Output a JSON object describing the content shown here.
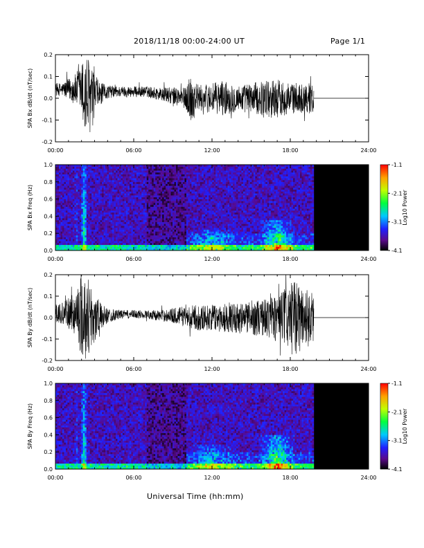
{
  "header": {
    "title": "2018/11/18  00:00-24:00 UT",
    "page": "Page 1/1"
  },
  "xaxis_label": "Universal Time (hh:mm)",
  "chart_data": [
    {
      "type": "line",
      "id": "bx-dbdt",
      "ylabel": "SPA Bx dB/dt (nT/sec)",
      "xlim": [
        0,
        24
      ],
      "ylim": [
        -0.2,
        0.2
      ],
      "x_ticks": [
        "00:00",
        "06:00",
        "12:00",
        "18:00",
        "24:00"
      ],
      "y_ticks": [
        "-0.2",
        "-0.1",
        "0.0",
        "0.1",
        "0.2"
      ],
      "grid": false,
      "data_end_hour": 19.8,
      "series": [
        {
          "x": [
            0,
            0.5,
            1,
            1.5,
            2,
            2.2,
            2.5,
            3,
            3.5,
            4,
            5,
            6,
            7,
            8,
            9,
            10,
            10.3,
            11,
            12,
            13,
            14,
            15,
            16,
            16.5,
            17,
            17.5,
            18,
            19,
            19.8,
            24
          ],
          "amplitude": [
            0.03,
            0.03,
            0.05,
            0.07,
            0.12,
            0.2,
            0.2,
            0.09,
            0.05,
            0.03,
            0.025,
            0.025,
            0.025,
            0.03,
            0.04,
            0.05,
            0.12,
            0.06,
            0.07,
            0.08,
            0.06,
            0.07,
            0.08,
            0.09,
            0.09,
            0.08,
            0.07,
            0.07,
            0.07,
            0
          ],
          "offset": [
            0.04,
            0.04,
            0.04,
            0.04,
            0.04,
            0.0,
            0.0,
            0.01,
            0.02,
            0.03,
            0.03,
            0.03,
            0.03,
            0.02,
            0.01,
            0.0,
            0.0,
            0.0,
            0.0,
            0.0,
            0.0,
            0.0,
            0.0,
            0.0,
            0.0,
            0.0,
            0.0,
            0.0,
            0.0,
            0.0
          ]
        }
      ]
    },
    {
      "type": "heatmap",
      "id": "bx-spectrogram",
      "ylabel": "SPA Bx Freq (Hz)",
      "xlim": [
        0,
        24
      ],
      "ylim": [
        0,
        1.0
      ],
      "x_ticks": [
        "00:00",
        "06:00",
        "12:00",
        "18:00",
        "24:00"
      ],
      "y_ticks": [
        "0.0",
        "0.2",
        "0.4",
        "0.6",
        "0.8",
        "1.0"
      ],
      "data_end_hour": 19.8,
      "colorbar": {
        "label": "Log10 Power",
        "range": [
          -4.1,
          -1.1
        ],
        "ticks": [
          "-1.1",
          "-2.1",
          "-3.1",
          "-4.1"
        ]
      },
      "features": [
        {
          "x": 2.2,
          "width": 0.25,
          "fmax": 1.0,
          "level": -2.6
        },
        {
          "x": 1.6,
          "width": 0.1,
          "fmax": 1.0,
          "level": -3.3
        },
        {
          "x": 12,
          "width": 2.0,
          "fmax": 0.25,
          "level": -3.1
        },
        {
          "x": 17,
          "width": 1.5,
          "fmax": 0.35,
          "level": -2.6
        }
      ]
    },
    {
      "type": "line",
      "id": "by-dbdt",
      "ylabel": "SPA By dB/dt (nT/sec)",
      "xlim": [
        0,
        24
      ],
      "ylim": [
        -0.2,
        0.2
      ],
      "x_ticks": [
        "00:00",
        "06:00",
        "12:00",
        "18:00",
        "24:00"
      ],
      "y_ticks": [
        "-0.2",
        "-0.1",
        "0.0",
        "0.1",
        "0.2"
      ],
      "grid": false,
      "data_end_hour": 19.8,
      "series": [
        {
          "x": [
            0,
            0.5,
            1,
            1.5,
            2,
            2.2,
            2.5,
            3,
            3.5,
            4,
            5,
            6,
            7,
            8,
            9,
            10,
            11,
            12,
            13,
            14,
            15,
            16,
            16.5,
            17,
            17.5,
            18,
            18.5,
            19,
            19.8,
            24
          ],
          "amplitude": [
            0.04,
            0.05,
            0.07,
            0.1,
            0.2,
            0.2,
            0.2,
            0.12,
            0.06,
            0.035,
            0.02,
            0.02,
            0.02,
            0.025,
            0.035,
            0.05,
            0.06,
            0.06,
            0.07,
            0.07,
            0.08,
            0.09,
            0.1,
            0.12,
            0.13,
            0.16,
            0.17,
            0.15,
            0.12,
            0
          ],
          "offset": [
            0.02,
            0.02,
            0.02,
            0.02,
            0.02,
            0,
            0,
            0,
            0.005,
            0.01,
            0.015,
            0.015,
            0.015,
            0.01,
            0.01,
            0.005,
            0.0,
            0.0,
            0.0,
            0.0,
            0.0,
            0.0,
            0.0,
            0.0,
            0.0,
            0.0,
            0.0,
            0.0,
            0.0,
            0.0
          ]
        }
      ]
    },
    {
      "type": "heatmap",
      "id": "by-spectrogram",
      "ylabel": "SPA By Freq (Hz)",
      "xlim": [
        0,
        24
      ],
      "ylim": [
        0,
        1.0
      ],
      "x_ticks": [
        "00:00",
        "06:00",
        "12:00",
        "18:00",
        "24:00"
      ],
      "y_ticks": [
        "0.0",
        "0.2",
        "0.4",
        "0.6",
        "0.8",
        "1.0"
      ],
      "data_end_hour": 19.8,
      "colorbar": {
        "label": "Log10 Power",
        "range": [
          -4.1,
          -1.1
        ],
        "ticks": [
          "-1.1",
          "-2.1",
          "-3.1",
          "-4.1"
        ]
      },
      "features": [
        {
          "x": 2.2,
          "width": 0.25,
          "fmax": 1.0,
          "level": -2.6
        },
        {
          "x": 1.6,
          "width": 0.1,
          "fmax": 1.0,
          "level": -3.3
        },
        {
          "x": 12,
          "width": 2.0,
          "fmax": 0.3,
          "level": -3.1
        },
        {
          "x": 17,
          "width": 1.5,
          "fmax": 0.4,
          "level": -2.5
        }
      ]
    }
  ]
}
